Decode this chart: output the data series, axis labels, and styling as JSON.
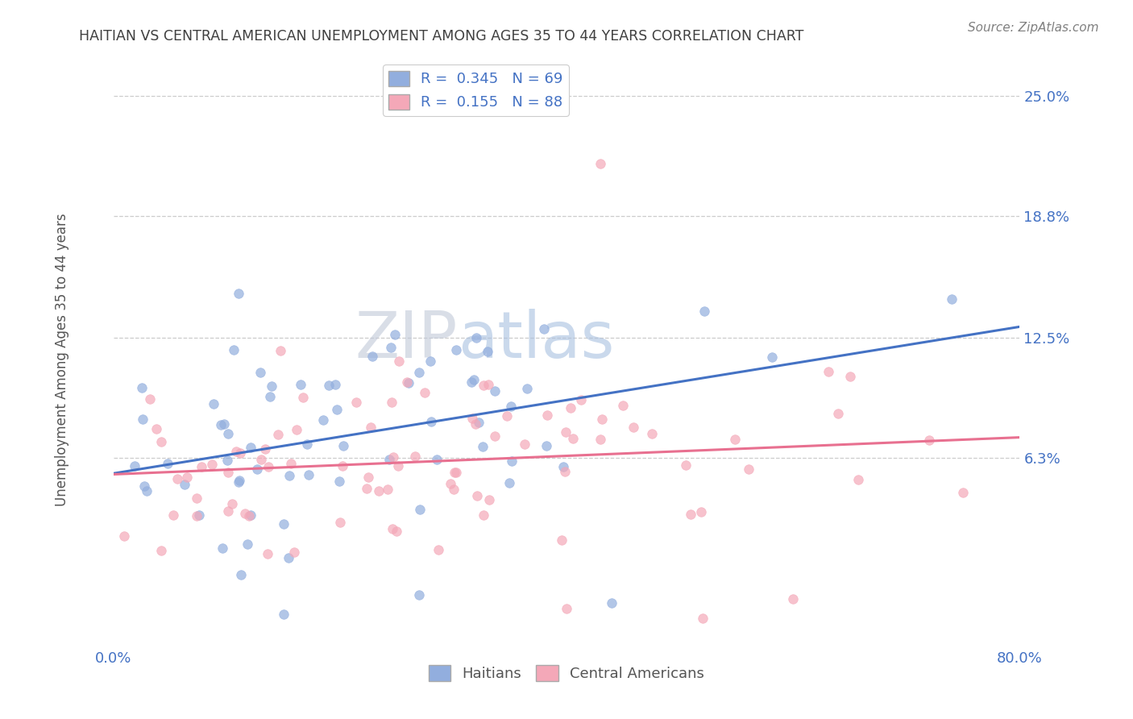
{
  "title": "HAITIAN VS CENTRAL AMERICAN UNEMPLOYMENT AMONG AGES 35 TO 44 YEARS CORRELATION CHART",
  "source": "Source: ZipAtlas.com",
  "ylabel": "Unemployment Among Ages 35 to 44 years",
  "xmin": 0.0,
  "xmax": 0.8,
  "ymin": -0.035,
  "ymax": 0.27,
  "yticks": [
    0.063,
    0.125,
    0.188,
    0.25
  ],
  "ytick_labels": [
    "6.3%",
    "12.5%",
    "18.8%",
    "25.0%"
  ],
  "xticks": [
    0.0,
    0.8
  ],
  "xtick_labels": [
    "0.0%",
    "80.0%"
  ],
  "blue_R": 0.345,
  "blue_N": 69,
  "pink_R": 0.155,
  "pink_N": 88,
  "blue_color": "#92AEDE",
  "pink_color": "#F4A8B8",
  "blue_line_color": "#4472C4",
  "pink_line_color": "#E87090",
  "title_color": "#404040",
  "tick_color": "#4472C4",
  "watermark_ZIP": "ZIP",
  "watermark_atlas": "atlas",
  "watermark_ZIP_color": "#C0C8D8",
  "watermark_atlas_color": "#A8C0E0",
  "background_color": "#FFFFFF",
  "grid_color": "#CCCCCC",
  "legend_label_blue": "Haitians",
  "legend_label_pink": "Central Americans",
  "source_color": "#808080"
}
